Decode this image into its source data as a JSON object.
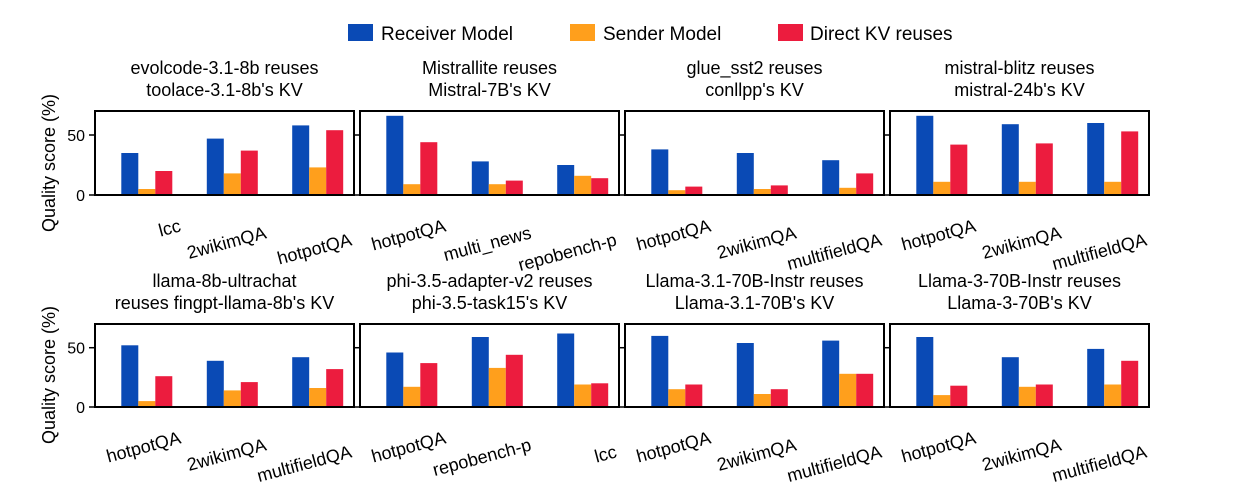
{
  "colors": {
    "receiver": "#0a4ab5",
    "sender": "#ff9f1c",
    "direct": "#ec1c3e"
  },
  "legend": [
    "Receiver Model",
    "Sender Model",
    "Direct KV reuses"
  ],
  "ylabel": "Quality score (%)",
  "yticks": [
    "0",
    "50"
  ],
  "chart_data": [
    {
      "type": "bar",
      "title": [
        "evolcode-3.1-8b reuses",
        "toolace-3.1-8b's KV"
      ],
      "categories": [
        "lcc",
        "2wikimQA",
        "hotpotQA"
      ],
      "ylim": [
        0,
        70
      ],
      "series": [
        {
          "name": "Receiver Model",
          "values": [
            35,
            47,
            58
          ]
        },
        {
          "name": "Sender Model",
          "values": [
            5,
            18,
            23
          ]
        },
        {
          "name": "Direct KV reuses",
          "values": [
            20,
            37,
            54
          ]
        }
      ]
    },
    {
      "type": "bar",
      "title": [
        "Mistrallite reuses",
        "Mistral-7B's KV"
      ],
      "categories": [
        "hotpotQA",
        "multi_news",
        "repobench-p"
      ],
      "ylim": [
        0,
        70
      ],
      "series": [
        {
          "name": "Receiver Model",
          "values": [
            66,
            28,
            25
          ]
        },
        {
          "name": "Sender Model",
          "values": [
            9,
            9,
            16
          ]
        },
        {
          "name": "Direct KV reuses",
          "values": [
            44,
            12,
            14
          ]
        }
      ]
    },
    {
      "type": "bar",
      "title": [
        "glue_sst2 reuses",
        "conllpp's KV"
      ],
      "categories": [
        "hotpotQA",
        "2wikimQA",
        "multifieldQA"
      ],
      "ylim": [
        0,
        70
      ],
      "series": [
        {
          "name": "Receiver Model",
          "values": [
            38,
            35,
            29
          ]
        },
        {
          "name": "Sender Model",
          "values": [
            4,
            5,
            6
          ]
        },
        {
          "name": "Direct KV reuses",
          "values": [
            7,
            8,
            18
          ]
        }
      ]
    },
    {
      "type": "bar",
      "title": [
        "mistral-blitz reuses",
        "mistral-24b's KV"
      ],
      "categories": [
        "hotpotQA",
        "2wikimQA",
        "multifieldQA"
      ],
      "ylim": [
        0,
        70
      ],
      "series": [
        {
          "name": "Receiver Model",
          "values": [
            66,
            59,
            60
          ]
        },
        {
          "name": "Sender Model",
          "values": [
            11,
            11,
            11
          ]
        },
        {
          "name": "Direct KV reuses",
          "values": [
            42,
            43,
            53
          ]
        }
      ]
    },
    {
      "type": "bar",
      "title": [
        "llama-8b-ultrachat",
        "reuses fingpt-llama-8b's KV"
      ],
      "categories": [
        "hotpotQA",
        "2wikimQA",
        "multifieldQA"
      ],
      "ylim": [
        0,
        70
      ],
      "series": [
        {
          "name": "Receiver Model",
          "values": [
            52,
            39,
            42
          ]
        },
        {
          "name": "Sender Model",
          "values": [
            5,
            14,
            16
          ]
        },
        {
          "name": "Direct KV reuses",
          "values": [
            26,
            21,
            32
          ]
        }
      ]
    },
    {
      "type": "bar",
      "title": [
        "phi-3.5-adapter-v2 reuses",
        "phi-3.5-task15's KV"
      ],
      "categories": [
        "hotpotQA",
        "repobench-p",
        "lcc"
      ],
      "ylim": [
        0,
        70
      ],
      "series": [
        {
          "name": "Receiver Model",
          "values": [
            46,
            59,
            62
          ]
        },
        {
          "name": "Sender Model",
          "values": [
            17,
            33,
            19
          ]
        },
        {
          "name": "Direct KV reuses",
          "values": [
            37,
            44,
            20
          ]
        }
      ]
    },
    {
      "type": "bar",
      "title": [
        "Llama-3.1-70B-Instr reuses",
        "Llama-3.1-70B's KV"
      ],
      "categories": [
        "hotpotQA",
        "2wikimQA",
        "multifieldQA"
      ],
      "ylim": [
        0,
        70
      ],
      "series": [
        {
          "name": "Receiver Model",
          "values": [
            60,
            54,
            56
          ]
        },
        {
          "name": "Sender Model",
          "values": [
            15,
            11,
            28
          ]
        },
        {
          "name": "Direct KV reuses",
          "values": [
            19,
            15,
            28
          ]
        }
      ]
    },
    {
      "type": "bar",
      "title": [
        "Llama-3-70B-Instr reuses",
        "Llama-3-70B's KV"
      ],
      "categories": [
        "hotpotQA",
        "2wikimQA",
        "multifieldQA"
      ],
      "ylim": [
        0,
        70
      ],
      "series": [
        {
          "name": "Receiver Model",
          "values": [
            59,
            42,
            49
          ]
        },
        {
          "name": "Sender Model",
          "values": [
            10,
            17,
            19
          ]
        },
        {
          "name": "Direct KV reuses",
          "values": [
            18,
            19,
            39
          ]
        }
      ]
    }
  ]
}
